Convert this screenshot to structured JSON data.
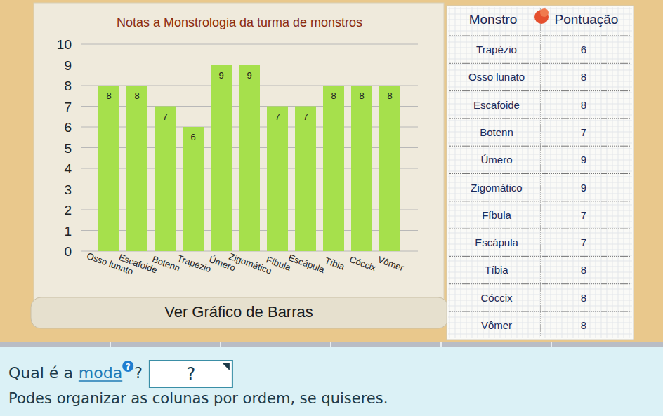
{
  "chart_data": {
    "type": "bar",
    "title": "Notas a Monstrologia da turma de monstros",
    "categories": [
      "Osso lunato",
      "Escafoide",
      "Botenn",
      "Trapézio",
      "Úmero",
      "Zigomático",
      "Fíbula",
      "Escápula",
      "Tíbia",
      "Cóccix",
      "Vômer"
    ],
    "values": [
      8,
      8,
      7,
      6,
      9,
      9,
      7,
      7,
      8,
      8,
      8
    ],
    "color": "#a6e04c",
    "ylim": [
      0,
      10
    ],
    "yticks": [
      0,
      1,
      2,
      3,
      4,
      5,
      6,
      7,
      8,
      9,
      10
    ],
    "grid": true,
    "data_labels": true
  },
  "table": {
    "header": [
      "Monstro",
      "Pontuação"
    ],
    "rows": [
      [
        "Trapézio",
        6
      ],
      [
        "Osso lunato",
        8
      ],
      [
        "Escafoide",
        8
      ],
      [
        "Botenn",
        7
      ],
      [
        "Úmero",
        9
      ],
      [
        "Zigomático",
        9
      ],
      [
        "Fíbula",
        7
      ],
      [
        "Escápula",
        7
      ],
      [
        "Tíbia",
        8
      ],
      [
        "Cóccix",
        8
      ],
      [
        "Vômer",
        8
      ]
    ]
  },
  "button": "Ver Gráfico de Barras",
  "question": {
    "prefix": "Qual é a",
    "link": "moda",
    "help": "?",
    "suffix": "?",
    "answer": "?",
    "hint": "Podes organizar as colunas por ordem, se quiseres."
  }
}
